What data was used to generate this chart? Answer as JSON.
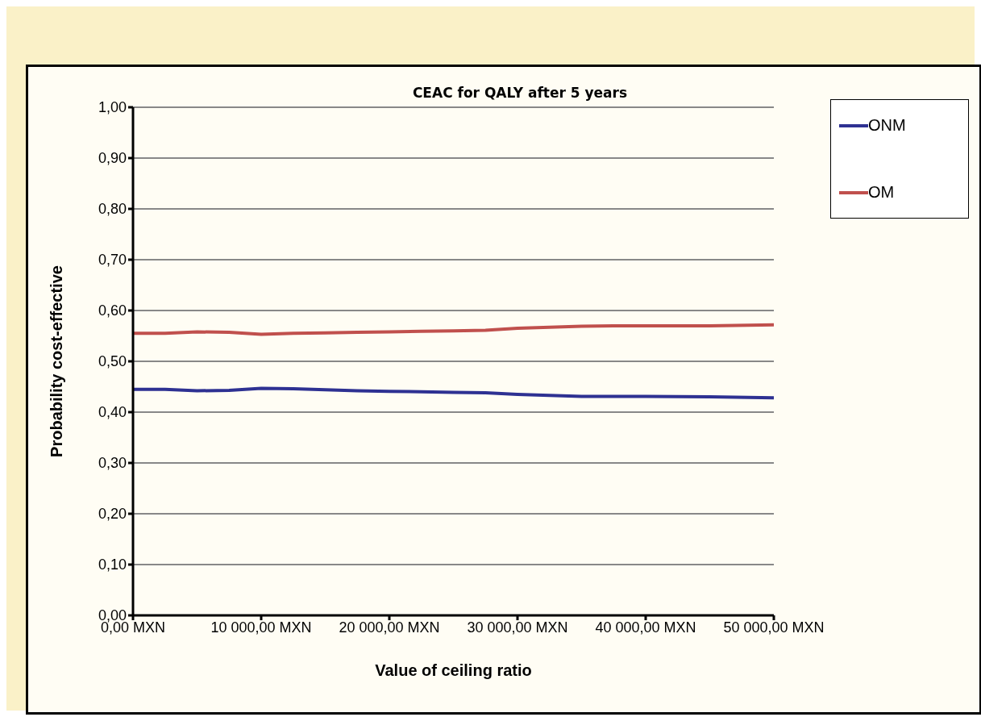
{
  "chart_data": {
    "type": "line",
    "title": "CEAC for QALY after 5 years",
    "xlabel": "Value of ceiling ratio",
    "ylabel": "Probability cost-effective",
    "x": [
      0,
      2500,
      5000,
      7500,
      10000,
      12500,
      15000,
      17500,
      20000,
      22500,
      25000,
      27500,
      30000,
      32500,
      35000,
      37500,
      40000,
      45000,
      50000
    ],
    "series": [
      {
        "name": "ONM",
        "color": "#2e3192",
        "values": [
          0.445,
          0.445,
          0.442,
          0.443,
          0.447,
          0.446,
          0.444,
          0.442,
          0.441,
          0.44,
          0.439,
          0.438,
          0.435,
          0.433,
          0.431,
          0.431,
          0.431,
          0.43,
          0.428
        ]
      },
      {
        "name": "OM",
        "color": "#c0504d",
        "values": [
          0.555,
          0.555,
          0.558,
          0.557,
          0.553,
          0.555,
          0.556,
          0.557,
          0.558,
          0.559,
          0.56,
          0.561,
          0.565,
          0.567,
          0.569,
          0.57,
          0.57,
          0.57,
          0.572
        ]
      }
    ],
    "xlim": [
      0,
      50000
    ],
    "xticks": [
      {
        "value": 0,
        "label": "0,00 MXN"
      },
      {
        "value": 10000,
        "label": "10 000,00 MXN"
      },
      {
        "value": 20000,
        "label": "20 000,00 MXN"
      },
      {
        "value": 30000,
        "label": "30 000,00 MXN"
      },
      {
        "value": 40000,
        "label": "40 000,00 MXN"
      },
      {
        "value": 50000,
        "label": "50 000,00 MXN"
      }
    ],
    "ylim": [
      0,
      1
    ],
    "yticks": [
      {
        "value": 0,
        "label": "0,00"
      },
      {
        "value": 0.1,
        "label": "0,10"
      },
      {
        "value": 0.2,
        "label": "0,20"
      },
      {
        "value": 0.3,
        "label": "0,30"
      },
      {
        "value": 0.4,
        "label": "0,40"
      },
      {
        "value": 0.5,
        "label": "0,50"
      },
      {
        "value": 0.6,
        "label": "0,60"
      },
      {
        "value": 0.7,
        "label": "0,70"
      },
      {
        "value": 0.8,
        "label": "0,80"
      },
      {
        "value": 0.9,
        "label": "0,90"
      },
      {
        "value": 1,
        "label": "1,00"
      }
    ],
    "grid": "y",
    "legend": "top right",
    "marker": "none",
    "line_style": "solid"
  }
}
